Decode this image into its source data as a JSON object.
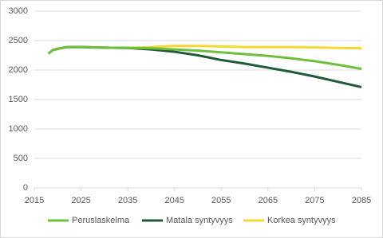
{
  "chart_data": {
    "type": "line",
    "x": [
      2018,
      2019,
      2020,
      2022,
      2025,
      2030,
      2035,
      2040,
      2045,
      2050,
      2055,
      2060,
      2065,
      2070,
      2075,
      2080,
      2085
    ],
    "series": [
      {
        "name": "Peruslaskelma",
        "color": "#70bf3c",
        "values": [
          2280,
          2340,
          2360,
          2390,
          2390,
          2380,
          2375,
          2370,
          2350,
          2330,
          2300,
          2270,
          2240,
          2200,
          2150,
          2090,
          2020
        ]
      },
      {
        "name": "Matala syntyvyys",
        "color": "#1f5a3a",
        "values": [
          2280,
          2340,
          2360,
          2390,
          2390,
          2380,
          2375,
          2350,
          2310,
          2250,
          2170,
          2110,
          2040,
          1970,
          1890,
          1800,
          1710
        ]
      },
      {
        "name": "Korkea syntyvyys",
        "color": "#f5d930",
        "values": [
          2280,
          2340,
          2360,
          2390,
          2390,
          2380,
          2375,
          2390,
          2410,
          2410,
          2400,
          2390,
          2390,
          2390,
          2385,
          2375,
          2370
        ]
      }
    ],
    "xlim": [
      2015,
      2085
    ],
    "xticks": [
      2015,
      2025,
      2035,
      2045,
      2055,
      2065,
      2075,
      2085
    ],
    "ylim": [
      0,
      3000
    ],
    "yticks": [
      0,
      500,
      1000,
      1500,
      2000,
      2500,
      3000
    ],
    "grid": true,
    "legend": "bottom"
  }
}
